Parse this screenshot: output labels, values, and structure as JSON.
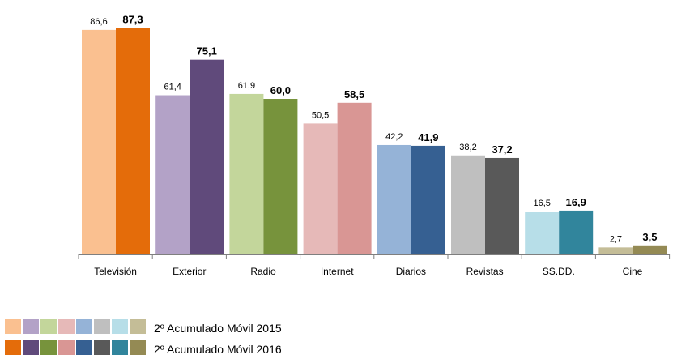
{
  "chart_data": {
    "type": "bar",
    "categories": [
      "Televisión",
      "Exterior",
      "Radio",
      "Internet",
      "Diarios",
      "Revistas",
      "SS.DD.",
      "Cine"
    ],
    "series": [
      {
        "name": "2º Acumulado Móvil 2015",
        "values": [
          86.6,
          61.4,
          61.9,
          50.5,
          42.2,
          38.2,
          16.5,
          2.7
        ],
        "labels": [
          "86,6",
          "61,4",
          "61,9",
          "50,5",
          "42,2",
          "38,2",
          "16,5",
          "2,7"
        ],
        "colors": [
          "#fac090",
          "#b3a2c7",
          "#c3d69b",
          "#e6b9b8",
          "#95b3d7",
          "#bfbfbf",
          "#b7dee8",
          "#c4bd97"
        ]
      },
      {
        "name": "2º Acumulado Móvil 2016",
        "values": [
          87.3,
          75.1,
          60.0,
          58.5,
          41.9,
          37.2,
          16.9,
          3.5
        ],
        "labels": [
          "87,3",
          "75,1",
          "60,0",
          "58,5",
          "41,9",
          "37,2",
          "16,9",
          "3,5"
        ],
        "colors": [
          "#e46c0a",
          "#604a7b",
          "#77933c",
          "#d99694",
          "#366092",
          "#595959",
          "#31859c",
          "#948a54"
        ]
      }
    ],
    "ylim": [
      0,
      90
    ],
    "grid": false,
    "legend": "bottom-left"
  }
}
